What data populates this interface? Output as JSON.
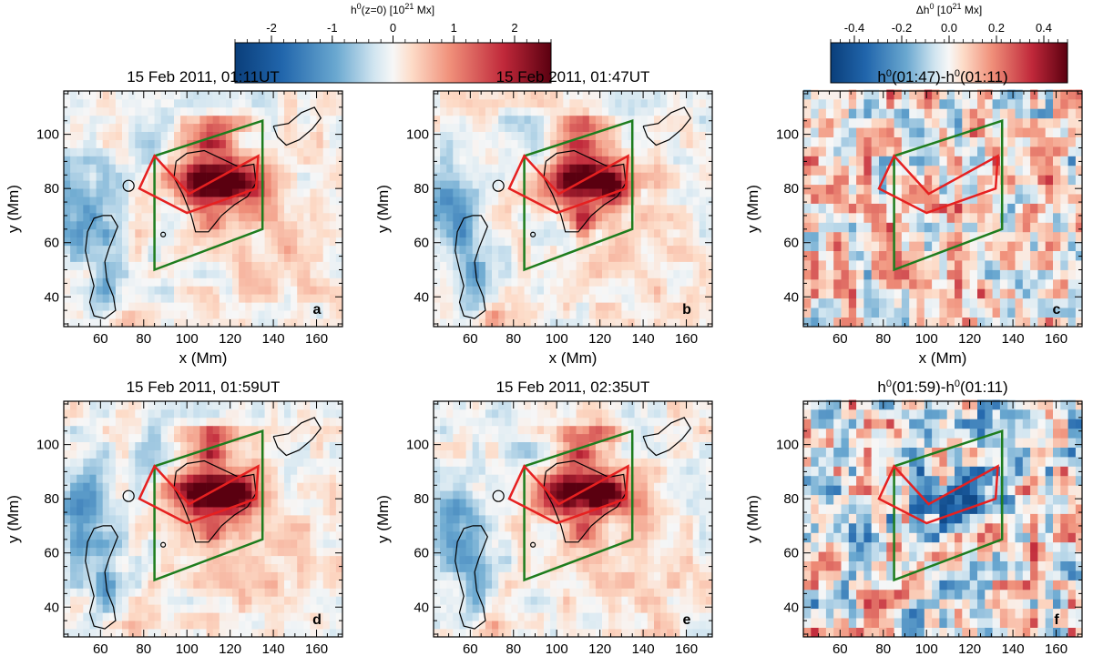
{
  "colorbars": [
    {
      "label_base": "h",
      "label_sup1": "0",
      "label_mid": "(z=0)  [10",
      "label_sup2": "21",
      "label_end": " Mx]",
      "ticks": [
        {
          "v": -2,
          "t": "-2"
        },
        {
          "v": -1,
          "t": "-1"
        },
        {
          "v": 0,
          "t": "0"
        },
        {
          "v": 1,
          "t": "1"
        },
        {
          "v": 2,
          "t": "2"
        }
      ],
      "range": [
        -2.6,
        2.6
      ]
    },
    {
      "label_base": "Δh",
      "label_sup1": "0",
      "label_mid": " [10",
      "label_sup2": "21",
      "label_end": " Mx]",
      "ticks": [
        {
          "v": -0.4,
          "t": "-0.4"
        },
        {
          "v": -0.2,
          "t": "-0.2"
        },
        {
          "v": 0,
          "t": "0.0"
        },
        {
          "v": 0.2,
          "t": "0.2"
        },
        {
          "v": 0.4,
          "t": "0.4"
        }
      ],
      "range": [
        -0.5,
        0.5
      ]
    }
  ],
  "chart_data": [
    {
      "type": "heatmap",
      "panel_label": "a",
      "title": "15 Feb 2011, 01:11UT",
      "xlabel": "x (Mm)",
      "ylabel": "y (Mm)",
      "xlim": [
        43,
        172
      ],
      "ylim": [
        29,
        116
      ],
      "xticks": [
        60,
        80,
        100,
        120,
        140,
        160
      ],
      "yticks": [
        40,
        60,
        80,
        100
      ],
      "kind": "h"
    },
    {
      "type": "heatmap",
      "panel_label": "b",
      "title": "15 Feb 2011, 01:47UT",
      "xlabel": "x (Mm)",
      "ylabel": "y (Mm)",
      "xlim": [
        43,
        172
      ],
      "ylim": [
        29,
        116
      ],
      "xticks": [
        60,
        80,
        100,
        120,
        140,
        160
      ],
      "yticks": [
        40,
        60,
        80,
        100
      ],
      "kind": "h"
    },
    {
      "type": "heatmap",
      "panel_label": "c",
      "title_base": "h",
      "title_sup1": "0",
      "title_mid": "(01:47)-h",
      "title_sup2": "0",
      "title_end": "(01:11)",
      "xlabel": "x (Mm)",
      "ylabel": "y (Mm)",
      "xlim": [
        43,
        172
      ],
      "ylim": [
        29,
        116
      ],
      "xticks": [
        60,
        80,
        100,
        120,
        140,
        160
      ],
      "yticks": [
        40,
        60,
        80,
        100
      ],
      "kind": "dh"
    },
    {
      "type": "heatmap",
      "panel_label": "d",
      "title": "15 Feb 2011, 01:59UT",
      "xlabel": "x (Mm)",
      "ylabel": "y (Mm)",
      "xlim": [
        43,
        172
      ],
      "ylim": [
        29,
        116
      ],
      "xticks": [
        60,
        80,
        100,
        120,
        140,
        160
      ],
      "yticks": [
        40,
        60,
        80,
        100
      ],
      "kind": "h"
    },
    {
      "type": "heatmap",
      "panel_label": "e",
      "title": "15 Feb 2011, 02:35UT",
      "xlabel": "x (Mm)",
      "ylabel": "y (Mm)",
      "xlim": [
        43,
        172
      ],
      "ylim": [
        29,
        116
      ],
      "xticks": [
        60,
        80,
        100,
        120,
        140,
        160
      ],
      "yticks": [
        40,
        60,
        80,
        100
      ],
      "kind": "h"
    },
    {
      "type": "heatmap",
      "panel_label": "f",
      "title_base": "h",
      "title_sup1": "0",
      "title_mid": "(01:59)-h",
      "title_sup2": "0",
      "title_end": "(01:11)",
      "xlabel": "x (Mm)",
      "ylabel": "y (Mm)",
      "xlim": [
        43,
        172
      ],
      "ylim": [
        29,
        116
      ],
      "xticks": [
        60,
        80,
        100,
        120,
        140,
        160
      ],
      "yticks": [
        40,
        60,
        80,
        100
      ],
      "kind": "dh"
    }
  ],
  "overlays": {
    "green_box": [
      [
        85,
        50
      ],
      [
        85,
        92
      ],
      [
        135,
        105
      ],
      [
        135,
        65
      ]
    ],
    "red_polygon": [
      [
        85,
        92
      ],
      [
        78,
        80
      ],
      [
        100,
        71
      ],
      [
        132,
        80
      ],
      [
        133,
        92
      ],
      [
        101,
        78
      ]
    ],
    "colors": {
      "green": "#1e7d1e",
      "red": "#e62020",
      "contour": "#000000"
    }
  }
}
